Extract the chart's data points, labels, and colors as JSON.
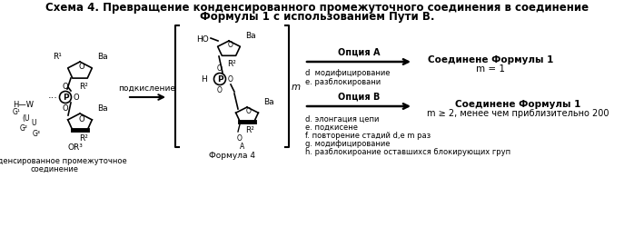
{
  "title_line1": "Схема 4. Превращение конденсированного промежуточного соединения в соединение",
  "title_line2": "Формулы 1 с использованием Пути В.",
  "label_condensed1": "Конденсированное промежуточное",
  "label_condensed2": "соединение",
  "label_acidification": "подкисление",
  "label_formula4": "Формула 4",
  "label_option_a": "Опция А",
  "label_option_b": "Опция В",
  "label_compound_a1": "Соединене Формулы 1",
  "label_compound_a2": "m = 1",
  "label_compound_b1": "Соединене Формулы 1",
  "label_compound_b2": "m ≥ 2, менее чем приблизительно 200",
  "option_a_steps": [
    "d  модифицирование",
    "е. разблокировани"
  ],
  "option_b_steps": [
    "d. элонгация цепи",
    "е. подкисене",
    "f. повторение стадий d,e m раз",
    "g. модифицирование",
    "h. разблокироание оставшихся блокирующих груп"
  ],
  "label_m": "m",
  "bg_color": "#ffffff",
  "text_color": "#000000",
  "title_fontsize": 8.5,
  "body_fontsize": 6.5,
  "small_fontsize": 5.5
}
